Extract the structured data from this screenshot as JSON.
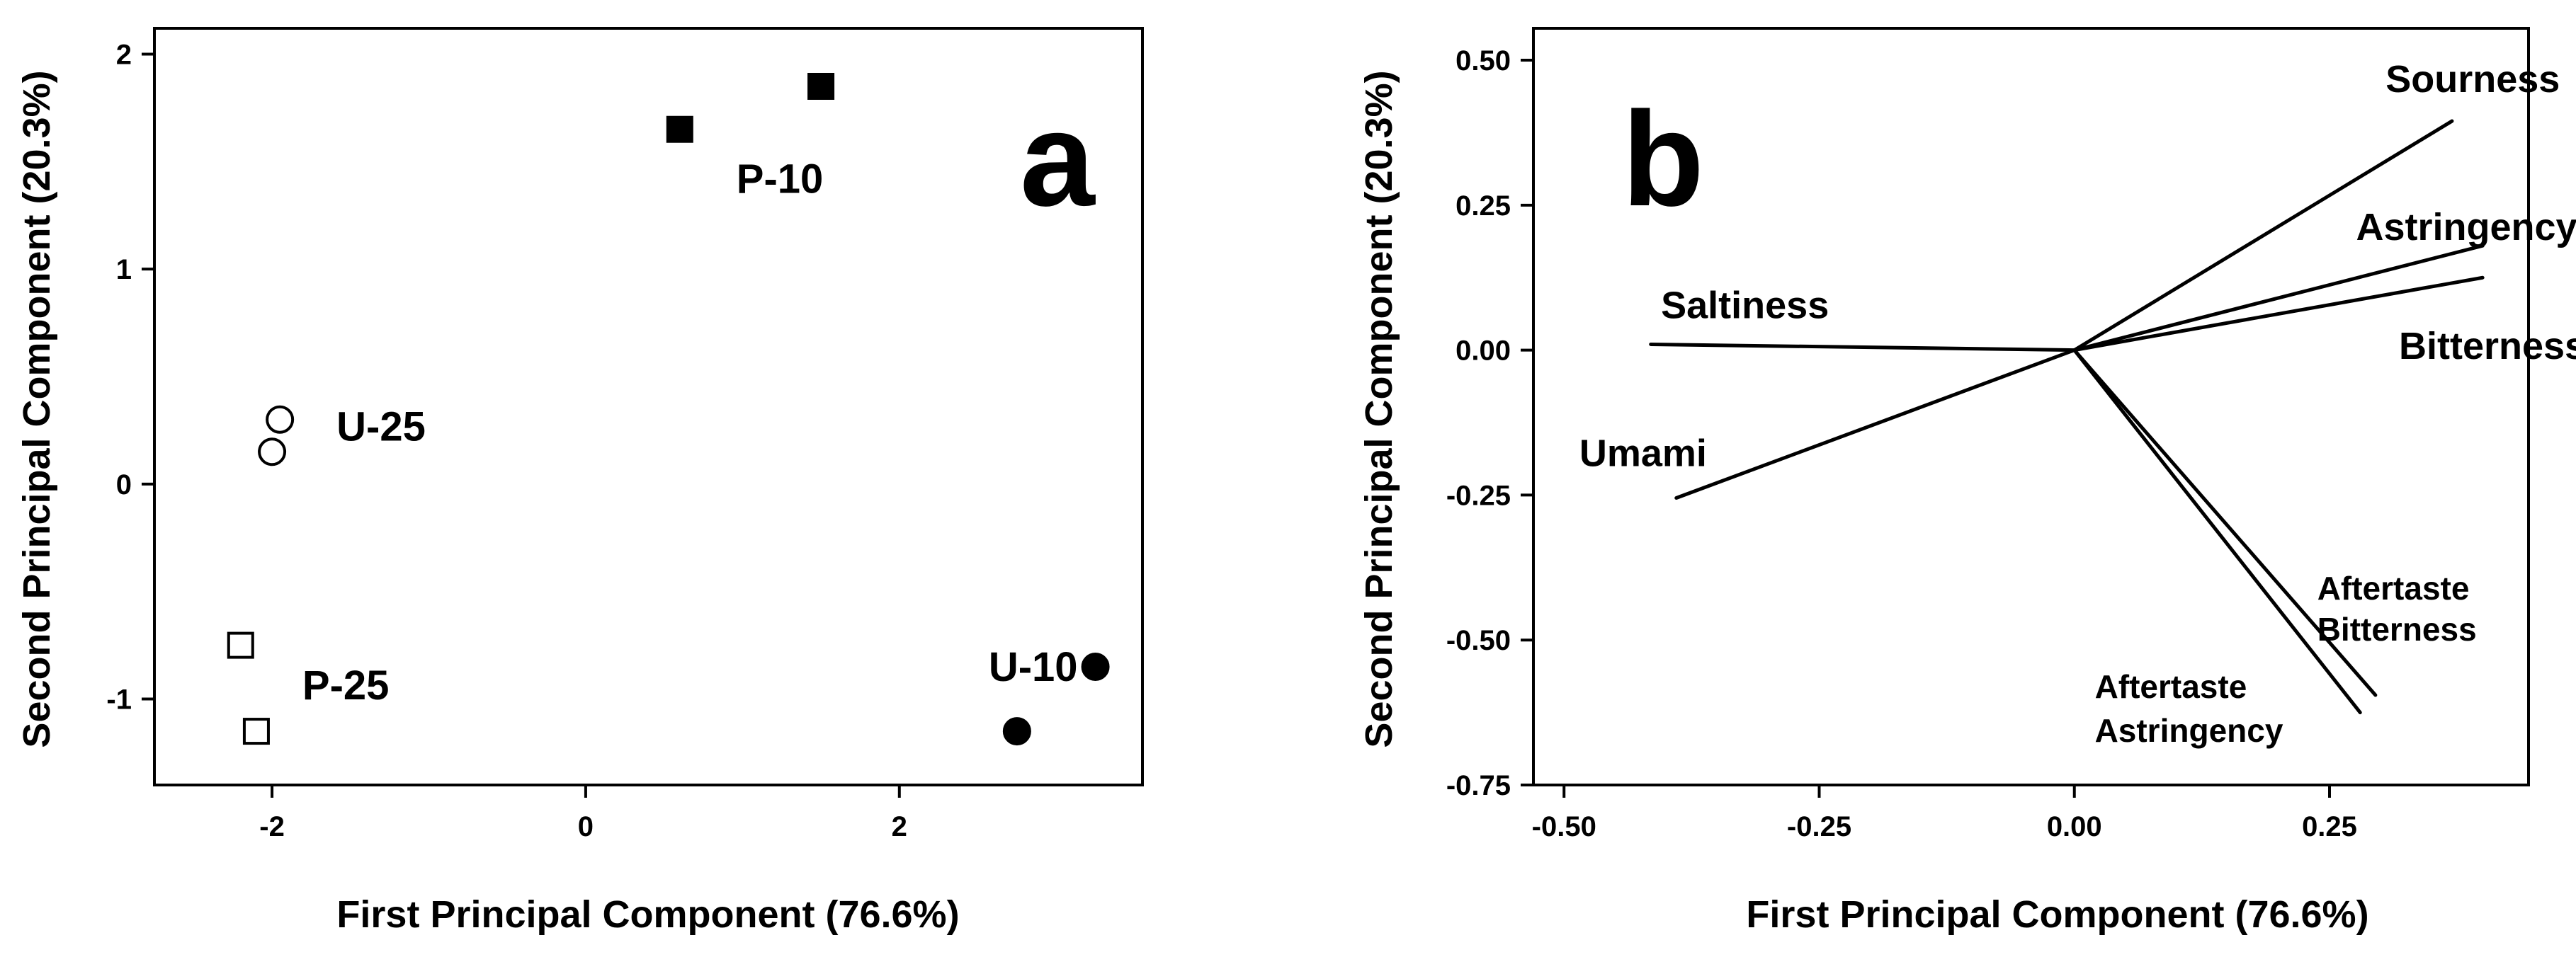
{
  "chart_data": [
    {
      "type": "scatter",
      "panel_label": "a",
      "xlabel": "First Principal Component (76.6%)",
      "ylabel": "Second Principal Component (20.3%)",
      "xlim": [
        -2.75,
        3.55
      ],
      "ylim": [
        -1.4,
        2.12
      ],
      "xticks": [
        "-2",
        "0",
        "2"
      ],
      "xtick_values": [
        -2,
        0,
        2
      ],
      "yticks": [
        "-1",
        "0",
        "1",
        "2"
      ],
      "ytick_values": [
        -1,
        0,
        1,
        2
      ],
      "series": [
        {
          "name": "P-10",
          "marker": "square",
          "fill": "#000000",
          "points": [
            [
              0.6,
              1.65
            ],
            [
              1.5,
              1.85
            ]
          ]
        },
        {
          "name": "U-25",
          "marker": "circle",
          "fill": "#ffffff",
          "points": [
            [
              -1.95,
              0.3
            ],
            [
              -2.0,
              0.15
            ]
          ]
        },
        {
          "name": "P-25",
          "marker": "square",
          "fill": "#ffffff",
          "points": [
            [
              -2.2,
              -0.75
            ],
            [
              -2.1,
              -1.15
            ]
          ]
        },
        {
          "name": "U-10",
          "marker": "circle",
          "fill": "#000000",
          "points": [
            [
              3.25,
              -0.85
            ],
            [
              2.75,
              -1.15
            ]
          ]
        }
      ]
    },
    {
      "type": "biplot",
      "panel_label": "b",
      "xlabel": "First Principal Component (76.6%)",
      "ylabel": "Second Principal Component (20.3%)",
      "xlim": [
        -0.53,
        0.445
      ],
      "ylim": [
        -0.75,
        0.555
      ],
      "xticks": [
        "-0.50",
        "-0.25",
        "0.00",
        "0.25"
      ],
      "xtick_values": [
        -0.5,
        -0.25,
        0,
        0.25
      ],
      "yticks": [
        "0.50",
        "0.25",
        "0.00",
        "-0.25",
        "-0.50",
        "-0.75"
      ],
      "ytick_values": [
        0.5,
        0.25,
        0,
        -0.25,
        -0.5,
        -0.75
      ],
      "vectors": [
        {
          "lines": [
            "Sourness"
          ],
          "x": 0.37,
          "y": 0.395
        },
        {
          "lines": [
            "Astringency"
          ],
          "x": 0.4,
          "y": 0.18
        },
        {
          "lines": [
            "Bitterness"
          ],
          "x": 0.4,
          "y": 0.125
        },
        {
          "lines": [
            "Saltiness"
          ],
          "x": -0.415,
          "y": 0.01
        },
        {
          "lines": [
            "Umami"
          ],
          "x": -0.39,
          "y": -0.255
        },
        {
          "lines": [
            "Aftertaste",
            "Bitterness"
          ],
          "x": 0.295,
          "y": -0.595
        },
        {
          "lines": [
            "Aftertaste",
            "Astringency"
          ],
          "x": 0.28,
          "y": -0.625
        }
      ]
    }
  ]
}
